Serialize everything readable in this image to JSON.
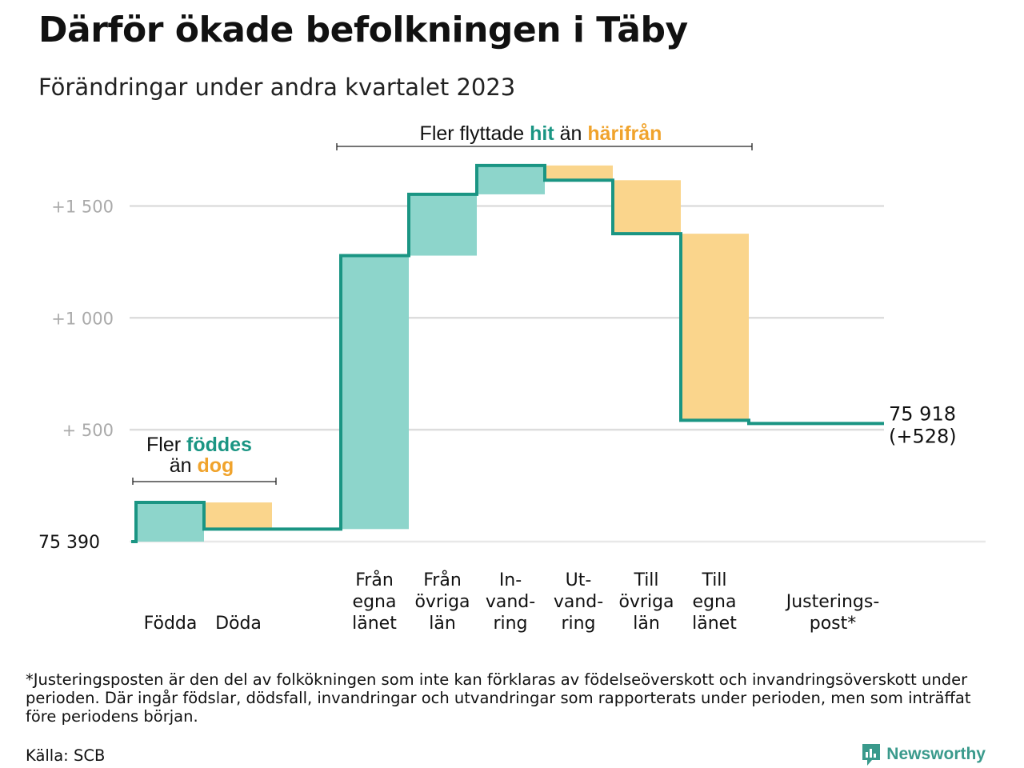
{
  "title": "Därför ökade befolkningen i Täby",
  "subtitle": "Förändringar under andra kvartalet 2023",
  "footnote": "*Justeringsposten är den del av folkökningen som inte kan förklaras av födelseöverskott och invandringsöverskott under perioden. Där ingår födslar, dödsfall, invandringar och utvandringar som rapporterats under perioden, men som inträffat före periodens början.",
  "source": "Källa: SCB",
  "brand": "Newsworthy",
  "colors": {
    "increase_fill": "#8dd5cb",
    "decrease_fill": "#fad58c",
    "step_line": "#1a9583",
    "teal_text": "#1a9583",
    "orange_text": "#f0a32c",
    "grid": "#dddddd",
    "tick_text": "#aaaaaa"
  },
  "annotations": {
    "births": {
      "line1": "Fler",
      "line1_hl": "föddes",
      "line2": "än",
      "line2_hl": "dog"
    },
    "moves": {
      "prefix": "Fler flyttade",
      "hl1": "hit",
      "mid": "än",
      "hl2": "härifrån"
    }
  },
  "chart_data": {
    "type": "waterfall",
    "base_label": "75  390",
    "base_value": 75390,
    "y_ticks": [
      {
        "value": 500,
        "label": "+  500"
      },
      {
        "value": 1000,
        "label": "+1   000"
      },
      {
        "value": 1500,
        "label": "+1   500"
      }
    ],
    "ylim": [
      0,
      1500
    ],
    "grid": true,
    "steps": [
      {
        "label": [
          "Födda"
        ],
        "change": 175
      },
      {
        "label": [
          "Döda"
        ],
        "change": -119
      },
      {
        "label": [
          "Från",
          "egna",
          "länet"
        ],
        "change": 1222
      },
      {
        "label": [
          "Från",
          "övriga",
          "län"
        ],
        "change": 274
      },
      {
        "label": [
          "In-",
          "vand-",
          "ring"
        ],
        "change": 129
      },
      {
        "label": [
          "Ut-",
          "vand-",
          "ring"
        ],
        "change": -66
      },
      {
        "label": [
          "Till",
          "övriga",
          "län"
        ],
        "change": -239
      },
      {
        "label": [
          "Till",
          "egna",
          "länet"
        ],
        "change": -834
      },
      {
        "label": [
          "Justerings-",
          "post*"
        ],
        "change": -14
      }
    ],
    "total_label": "75 918",
    "total_change_label": "(+528)",
    "total_value": 75918,
    "total_change": 528
  }
}
